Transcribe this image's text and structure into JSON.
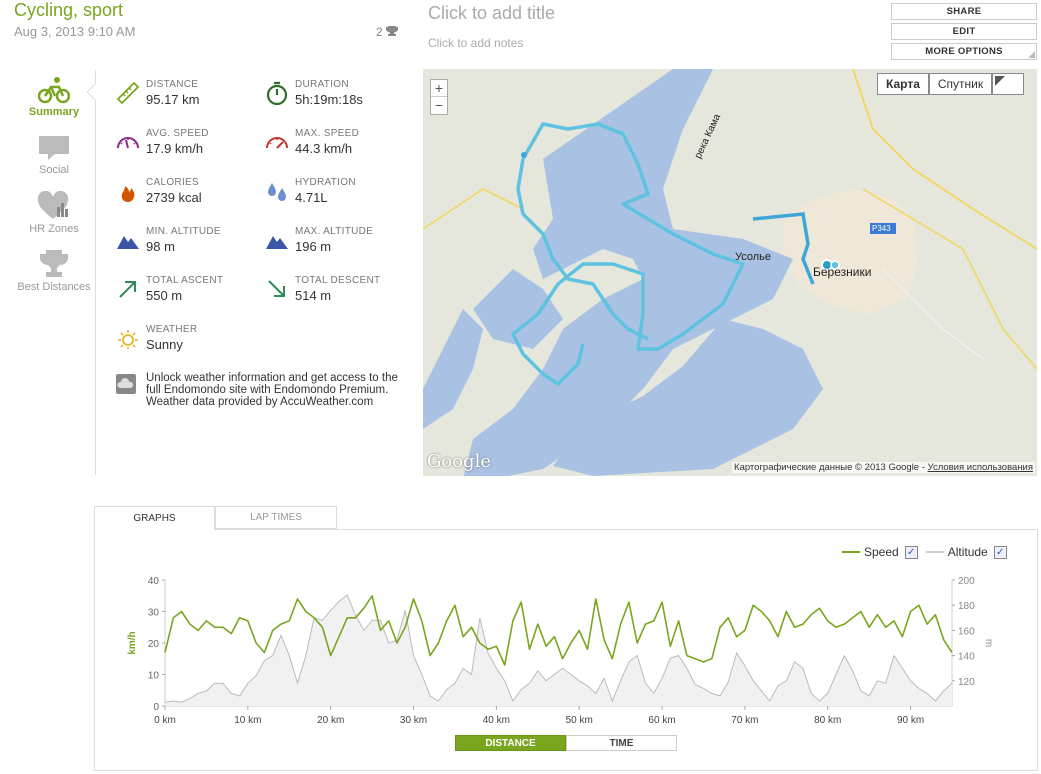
{
  "header": {
    "title": "Cycling, sport",
    "date": "Aug 3, 2013 9:10 AM",
    "likes": "2",
    "add_title": "Click to add title",
    "add_notes": "Click to add notes"
  },
  "actions": {
    "share": "SHARE",
    "edit": "EDIT",
    "more": "MORE OPTIONS"
  },
  "sidebar": {
    "items": [
      {
        "label": "Summary",
        "icon": "bicycle-icon"
      },
      {
        "label": "Social",
        "icon": "speech-bubble-icon"
      },
      {
        "label": "HR Zones",
        "icon": "heart-chart-icon"
      },
      {
        "label": "Best Distances",
        "icon": "trophy-icon"
      }
    ]
  },
  "stats": [
    {
      "label": "DISTANCE",
      "value": "95.17 km",
      "icon": "ruler-icon"
    },
    {
      "label": "DURATION",
      "value": "5h:19m:18s",
      "icon": "stopwatch-icon"
    },
    {
      "label": "AVG. SPEED",
      "value": "17.9 km/h",
      "icon": "speedometer-icon"
    },
    {
      "label": "MAX. SPEED",
      "value": "44.3 km/h",
      "icon": "speedometer-max-icon"
    },
    {
      "label": "CALORIES",
      "value": "2739 kcal",
      "icon": "flame-icon"
    },
    {
      "label": "HYDRATION",
      "value": "4.71L",
      "icon": "water-drops-icon"
    },
    {
      "label": "MIN. ALTITUDE",
      "value": "98 m",
      "icon": "mountain-icon"
    },
    {
      "label": "MAX. ALTITUDE",
      "value": "196 m",
      "icon": "mountain-icon"
    },
    {
      "label": "TOTAL ASCENT",
      "value": "550 m",
      "icon": "ascent-arrow-icon"
    },
    {
      "label": "TOTAL DESCENT",
      "value": "514 m",
      "icon": "descent-arrow-icon"
    },
    {
      "label": "WEATHER",
      "value": "Sunny",
      "icon": "sun-icon"
    }
  ],
  "premium_note": {
    "line1": "Unlock weather information and get access to the full Endomondo site with Endomondo Premium.",
    "line2": "Weather data provided by AccuWeather.com"
  },
  "map": {
    "type_buttons": [
      "Карта",
      "Спутник"
    ],
    "attribution": "Картографические данные © 2013 Google - ",
    "terms": "Условия использования",
    "logo": "Google",
    "places": {
      "river": "река Кама",
      "usolye": "Усолье",
      "berezniki": "Березники",
      "road": "P343"
    }
  },
  "tabs": {
    "graphs": "GRAPHS",
    "laps": "LAP TIMES"
  },
  "legend": {
    "speed": "Speed",
    "altitude": "Altitude"
  },
  "toggle": {
    "distance": "DISTANCE",
    "time": "TIME"
  },
  "colors": {
    "brand": "#7aa51f",
    "speed_line": "#7aa51f",
    "altitude_fill": "#f1f1f1",
    "altitude_line": "#bbbbbb",
    "route": "#5ec3e0",
    "water": "#a9c1e3"
  },
  "chart_data": {
    "type": "line",
    "xlabel": "",
    "ylabel": "km/h",
    "y2label": "m",
    "x_ticks": [
      "0 km",
      "10 km",
      "20 km",
      "30 km",
      "40 km",
      "50 km",
      "60 km",
      "70 km",
      "80 km",
      "90 km"
    ],
    "ylim": [
      0,
      40
    ],
    "y_ticks": [
      "0",
      "10",
      "20",
      "30",
      "40"
    ],
    "y2lim": [
      100,
      200
    ],
    "y2_ticks": [
      "120",
      "140",
      "160",
      "180",
      "200"
    ],
    "series": [
      {
        "name": "Speed",
        "axis": "left",
        "x": [
          0,
          1,
          2,
          3,
          4,
          5,
          6,
          7,
          8,
          9,
          10,
          11,
          12,
          13,
          14,
          15,
          16,
          17,
          18,
          19,
          20,
          21,
          22,
          23,
          24,
          25,
          26,
          27,
          28,
          29,
          30,
          31,
          32,
          33,
          34,
          35,
          36,
          37,
          38,
          39,
          40,
          41,
          42,
          43,
          44,
          45,
          46,
          47,
          48,
          49,
          50,
          51,
          52,
          53,
          54,
          55,
          56,
          57,
          58,
          59,
          60,
          61,
          62,
          63,
          64,
          65,
          66,
          67,
          68,
          69,
          70,
          71,
          72,
          73,
          74,
          75,
          76,
          77,
          78,
          79,
          80,
          81,
          82,
          83,
          84,
          85,
          86,
          87,
          88,
          89,
          90,
          91,
          92,
          93,
          94,
          95
        ],
        "values": [
          17,
          28,
          30,
          26,
          24,
          27,
          25,
          25,
          23,
          28,
          27,
          20,
          17,
          24,
          26,
          27,
          34,
          30,
          28,
          25,
          16,
          22,
          28,
          28,
          31,
          35,
          24,
          27,
          20,
          25,
          34,
          27,
          16,
          20,
          27,
          32,
          22,
          25,
          20,
          18,
          19,
          13,
          27,
          33,
          18,
          26,
          19,
          22,
          15,
          20,
          24,
          18,
          34,
          21,
          15,
          26,
          33,
          20,
          26,
          27,
          33,
          19,
          27,
          16,
          15,
          14,
          15,
          25,
          28,
          22,
          24,
          32,
          30,
          27,
          22,
          30,
          25,
          26,
          29,
          31,
          27,
          25,
          26,
          28,
          30,
          25,
          29,
          25,
          27,
          22,
          30,
          32,
          26,
          29,
          21,
          17
        ]
      },
      {
        "name": "Altitude",
        "axis": "right",
        "x": [
          0,
          1,
          2,
          3,
          4,
          5,
          6,
          7,
          8,
          9,
          10,
          11,
          12,
          13,
          14,
          15,
          16,
          17,
          18,
          19,
          20,
          21,
          22,
          23,
          24,
          25,
          26,
          27,
          28,
          29,
          30,
          31,
          32,
          33,
          34,
          35,
          36,
          37,
          38,
          39,
          40,
          41,
          42,
          43,
          44,
          45,
          46,
          47,
          48,
          49,
          50,
          51,
          52,
          53,
          54,
          55,
          56,
          57,
          58,
          59,
          60,
          61,
          62,
          63,
          64,
          65,
          66,
          67,
          68,
          69,
          70,
          71,
          72,
          73,
          74,
          75,
          76,
          77,
          78,
          79,
          80,
          81,
          82,
          83,
          84,
          85,
          86,
          87,
          88,
          89,
          90,
          91,
          92,
          93,
          94,
          95
        ],
        "values": [
          103,
          104,
          103,
          106,
          110,
          112,
          118,
          118,
          110,
          108,
          118,
          124,
          136,
          140,
          156,
          140,
          118,
          140,
          170,
          168,
          176,
          183,
          188,
          172,
          160,
          168,
          168,
          150,
          152,
          176,
          140,
          125,
          108,
          104,
          113,
          118,
          130,
          125,
          170,
          142,
          130,
          120,
          104,
          113,
          118,
          128,
          120,
          125,
          130,
          125,
          120,
          116,
          110,
          122,
          104,
          120,
          135,
          140,
          118,
          110,
          122,
          138,
          140,
          130,
          117,
          114,
          110,
          108,
          119,
          142,
          132,
          120,
          112,
          104,
          116,
          120,
          135,
          130,
          110,
          104,
          110,
          125,
          140,
          128,
          112,
          108,
          120,
          118,
          140,
          130,
          120,
          114,
          110,
          104,
          112,
          118
        ]
      }
    ]
  }
}
